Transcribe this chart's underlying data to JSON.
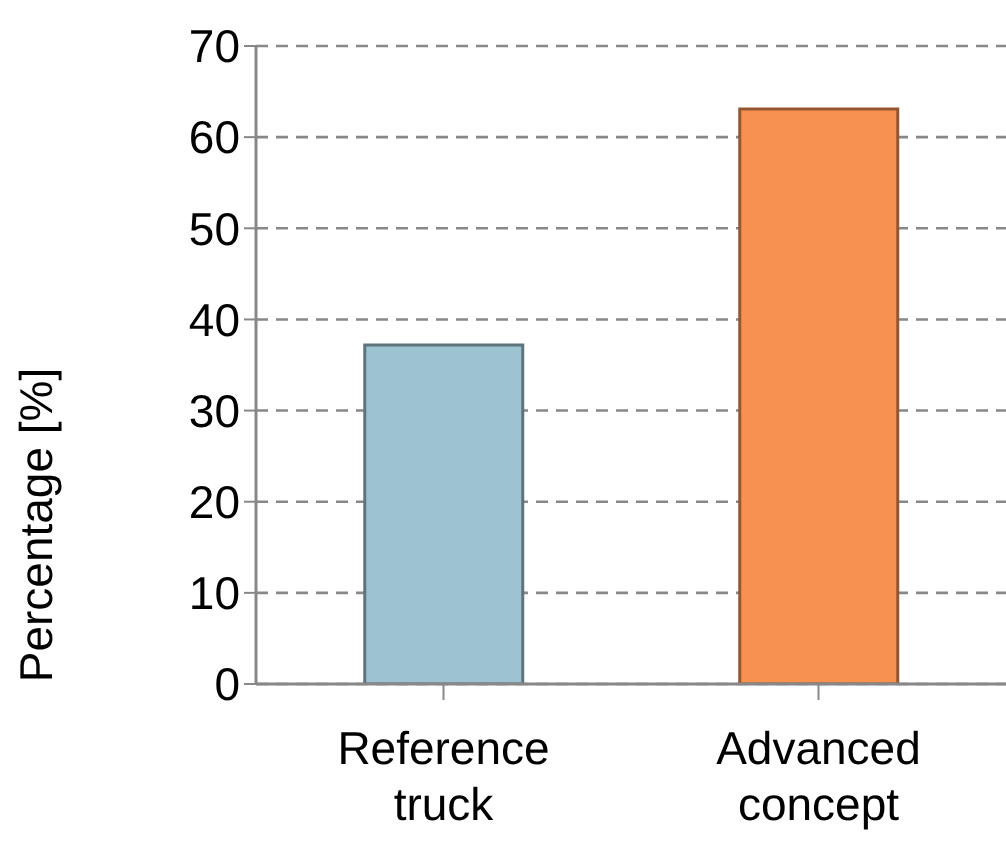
{
  "chart_data": {
    "type": "bar",
    "ylabel": "Percentage [%]",
    "categories": [
      "Reference truck",
      "Advanced concept"
    ],
    "values": [
      37.2,
      63.1
    ],
    "colors": [
      "#9dc3d0",
      "#f79151"
    ],
    "ylim": [
      0,
      70
    ],
    "yticks": [
      0,
      10,
      20,
      30,
      40,
      50,
      60,
      70
    ],
    "grid": "y"
  }
}
